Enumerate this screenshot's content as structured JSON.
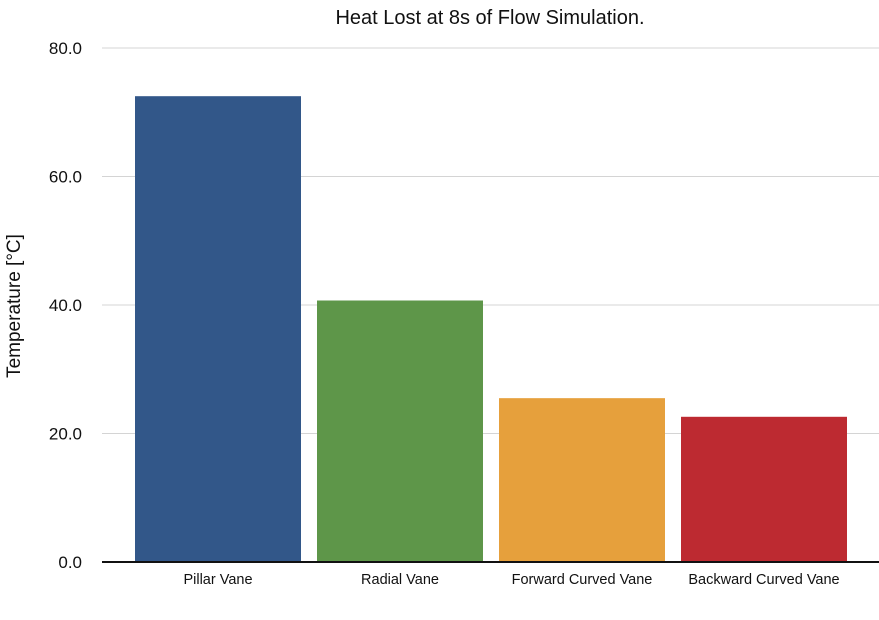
{
  "chart_data": {
    "type": "bar",
    "title": "Heat Lost at 8s of Flow Simulation.",
    "xlabel": "",
    "ylabel": "Temperature [°C]",
    "categories": [
      "Pillar Vane",
      "Radial Vane",
      "Forward Curved Vane",
      "Backward Curved Vane"
    ],
    "values": [
      72.5,
      40.7,
      25.5,
      22.6
    ],
    "colors": [
      "#325789",
      "#5e9649",
      "#e6a03c",
      "#bd2a31"
    ],
    "ylim": [
      0,
      80
    ],
    "yticks": [
      "0.0",
      "20.0",
      "40.0",
      "60.0",
      "80.0"
    ],
    "grid": true,
    "legend": "none"
  }
}
